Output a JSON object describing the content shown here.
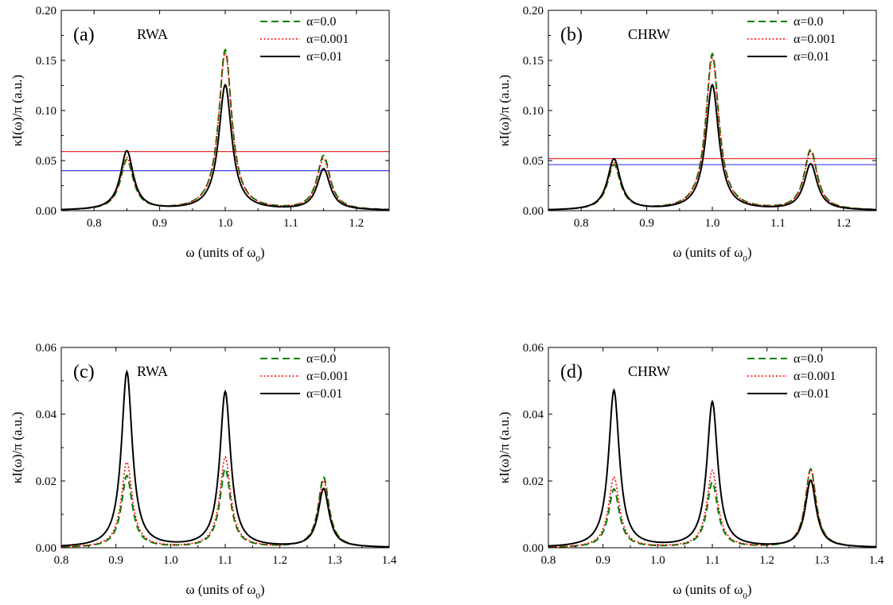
{
  "colors": {
    "alpha_0.0": "#008000",
    "alpha_0.001": "#ff0000",
    "alpha_0.01": "#000000",
    "hline_red": "#e03030",
    "hline_blue": "#3a3aff"
  },
  "chart_data": [
    {
      "type": "line",
      "panel_label": "(a)",
      "model_label": "RWA",
      "ylabel": "κI(ω)/π (a.u.)",
      "xlabel_main": "ω (units of ω",
      "xlabel_sub": "0",
      "xlabel_close": ")",
      "xlim": [
        0.75,
        1.25
      ],
      "ylim": [
        0,
        0.2
      ],
      "x_ticks": [
        "0.8",
        "0.9",
        "1.0",
        "1.1",
        "1.2"
      ],
      "y_ticks": [
        "0.00",
        "0.05",
        "0.10",
        "0.15",
        "0.20"
      ],
      "legend_position": "top-right",
      "series": [
        {
          "name": "α=0.0",
          "style": "dashed",
          "peaks": [
            {
              "x": 0.85,
              "height": 0.05
            },
            {
              "x": 1.0,
              "height": 0.16
            },
            {
              "x": 1.15,
              "height": 0.054
            }
          ]
        },
        {
          "name": "α=0.001",
          "style": "dotted",
          "peaks": [
            {
              "x": 0.85,
              "height": 0.052
            },
            {
              "x": 1.0,
              "height": 0.157
            },
            {
              "x": 1.15,
              "height": 0.051
            }
          ]
        },
        {
          "name": "α=0.01",
          "style": "solid",
          "peaks": [
            {
              "x": 0.85,
              "height": 0.059
            },
            {
              "x": 1.0,
              "height": 0.125
            },
            {
              "x": 1.15,
              "height": 0.041
            }
          ]
        }
      ],
      "hlines": [
        {
          "y": 0.059,
          "color": "red"
        },
        {
          "y": 0.04,
          "color": "blue"
        }
      ]
    },
    {
      "type": "line",
      "panel_label": "(b)",
      "model_label": "CHRW",
      "ylabel": "κI(ω)/π (a.u.)",
      "xlabel_main": "ω (units of ω",
      "xlabel_sub": "0",
      "xlabel_close": ")",
      "xlim": [
        0.75,
        1.25
      ],
      "ylim": [
        0,
        0.2
      ],
      "x_ticks": [
        "0.8",
        "0.9",
        "1.0",
        "1.1",
        "1.2"
      ],
      "y_ticks": [
        "0.00",
        "0.05",
        "0.10",
        "0.15",
        "0.20"
      ],
      "legend_position": "top-right",
      "series": [
        {
          "name": "α=0.0",
          "style": "dashed",
          "peaks": [
            {
              "x": 0.85,
              "height": 0.045
            },
            {
              "x": 1.0,
              "height": 0.156
            },
            {
              "x": 1.15,
              "height": 0.06
            }
          ]
        },
        {
          "name": "α=0.001",
          "style": "dotted",
          "peaks": [
            {
              "x": 0.85,
              "height": 0.047
            },
            {
              "x": 1.0,
              "height": 0.152
            },
            {
              "x": 1.15,
              "height": 0.058
            }
          ]
        },
        {
          "name": "α=0.01",
          "style": "solid",
          "peaks": [
            {
              "x": 0.85,
              "height": 0.051
            },
            {
              "x": 1.0,
              "height": 0.125
            },
            {
              "x": 1.15,
              "height": 0.046
            }
          ]
        }
      ],
      "hlines": [
        {
          "y": 0.052,
          "color": "red"
        },
        {
          "y": 0.046,
          "color": "blue"
        }
      ]
    },
    {
      "type": "line",
      "panel_label": "(c)",
      "model_label": "RWA",
      "ylabel": "κI(ω)/π (a.u.)",
      "xlabel_main": "ω (units of ω",
      "xlabel_sub": "0",
      "xlabel_close": ")",
      "xlim": [
        0.8,
        1.4
      ],
      "ylim": [
        0,
        0.06
      ],
      "x_ticks": [
        "0.8",
        "0.9",
        "1.0",
        "1.1",
        "1.2",
        "1.3",
        "1.4"
      ],
      "y_ticks": [
        "0.00",
        "0.02",
        "0.04",
        "0.06"
      ],
      "legend_position": "top-right",
      "series": [
        {
          "name": "α=0.0",
          "style": "dashed",
          "peaks": [
            {
              "x": 0.92,
              "height": 0.0215
            },
            {
              "x": 1.1,
              "height": 0.0235
            },
            {
              "x": 1.28,
              "height": 0.021
            }
          ]
        },
        {
          "name": "α=0.001",
          "style": "dotted",
          "peaks": [
            {
              "x": 0.92,
              "height": 0.0255
            },
            {
              "x": 1.1,
              "height": 0.027
            },
            {
              "x": 1.28,
              "height": 0.02
            }
          ]
        },
        {
          "name": "α=0.01",
          "style": "solid",
          "peaks": [
            {
              "x": 0.92,
              "height": 0.0525
            },
            {
              "x": 1.1,
              "height": 0.0465
            },
            {
              "x": 1.28,
              "height": 0.0175
            }
          ]
        }
      ],
      "hlines": []
    },
    {
      "type": "line",
      "panel_label": "(d)",
      "model_label": "CHRW",
      "ylabel": "κI(ω)/π (a.u.)",
      "xlabel_main": "ω (units of ω",
      "xlabel_sub": "0",
      "xlabel_close": ")",
      "xlim": [
        0.8,
        1.4
      ],
      "ylim": [
        0,
        0.06
      ],
      "x_ticks": [
        "0.8",
        "0.9",
        "1.0",
        "1.1",
        "1.2",
        "1.3",
        "1.4"
      ],
      "y_ticks": [
        "0.00",
        "0.02",
        "0.04",
        "0.06"
      ],
      "legend_position": "top-right",
      "series": [
        {
          "name": "α=0.0",
          "style": "dashed",
          "peaks": [
            {
              "x": 0.92,
              "height": 0.0175
            },
            {
              "x": 1.1,
              "height": 0.0195
            },
            {
              "x": 1.28,
              "height": 0.0235
            }
          ]
        },
        {
          "name": "α=0.001",
          "style": "dotted",
          "peaks": [
            {
              "x": 0.92,
              "height": 0.021
            },
            {
              "x": 1.1,
              "height": 0.023
            },
            {
              "x": 1.28,
              "height": 0.0235
            }
          ]
        },
        {
          "name": "α=0.01",
          "style": "solid",
          "peaks": [
            {
              "x": 0.92,
              "height": 0.047
            },
            {
              "x": 1.1,
              "height": 0.0435
            },
            {
              "x": 1.28,
              "height": 0.02
            }
          ]
        }
      ],
      "hlines": []
    }
  ]
}
